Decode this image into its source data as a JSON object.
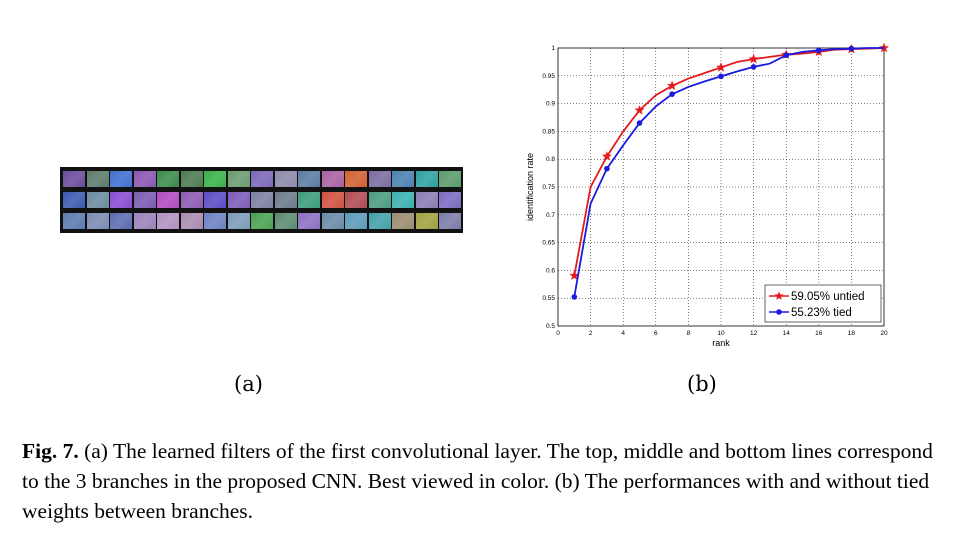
{
  "figure": {
    "sub_a_label": "(a)",
    "sub_b_label": "(b)",
    "caption_prefix": "Fig. 7.",
    "caption_text": "(a) The learned filters of the first convolutional layer. The top, middle and bottom lines correspond to the 3 branches in the proposed CNN. Best viewed in color. (b) The performances with and without tied weights between branches."
  },
  "filters": {
    "rows": [
      [
        "#6a4a9a",
        "#5a7a6a",
        "#3f6fd0",
        "#8a55b0",
        "#3a8a4a",
        "#4a7a50",
        "#38b048",
        "#6a9a70",
        "#7a66b8",
        "#8a8aaa",
        "#5a7aa0",
        "#a860a0",
        "#d06030",
        "#7a6aa0",
        "#4a80b0",
        "#2f9f9f",
        "#5a9a6a"
      ],
      [
        "#3a5ab0",
        "#6a8aa0",
        "#8a4ad0",
        "#7a5ab0",
        "#b04ac0",
        "#8a5ab0",
        "#5a4ac0",
        "#7a5ab8",
        "#7a80a0",
        "#6a7a8a",
        "#3a9a7a",
        "#d05040",
        "#b04a50",
        "#4a9a80",
        "#3ab0b0",
        "#8a7ab0",
        "#7a6ac0"
      ],
      [
        "#5a7ab0",
        "#7a8ab0",
        "#5a6ab0",
        "#9a80b8",
        "#b090c0",
        "#a88ab0",
        "#6a80c0",
        "#7a9ab8",
        "#4aa050",
        "#5a8a70",
        "#8a70c0",
        "#6a8aa8",
        "#5a9ab8",
        "#40a0a8",
        "#9a8a70",
        "#a0a040",
        "#7a7aa8"
      ]
    ]
  },
  "chart_data": {
    "type": "line",
    "xlabel": "rank",
    "ylabel": "identification rate",
    "xlim": [
      0,
      20
    ],
    "ylim": [
      0.5,
      1
    ],
    "xticks": [
      "0",
      "2",
      "4",
      "6",
      "8",
      "10",
      "12",
      "14",
      "16",
      "18",
      "20"
    ],
    "yticks": [
      "0.5",
      "0.55",
      "0.6",
      "0.65",
      "0.7",
      "0.75",
      "0.8",
      "0.85",
      "0.9",
      "0.95",
      "1"
    ],
    "grid": true,
    "legend_position": "bottom-right",
    "series": [
      {
        "name": "59.05% untied",
        "color": "#e41a1c",
        "marker": "star",
        "x": [
          1,
          2,
          3,
          4,
          5,
          6,
          7,
          8,
          9,
          10,
          11,
          12,
          13,
          14,
          15,
          16,
          17,
          18,
          19,
          20
        ],
        "y": [
          0.5905,
          0.75,
          0.805,
          0.85,
          0.888,
          0.915,
          0.932,
          0.945,
          0.955,
          0.965,
          0.975,
          0.98,
          0.984,
          0.988,
          0.99,
          0.993,
          0.997,
          0.998,
          0.999,
          1.0
        ],
        "marker_x": [
          1,
          3,
          5,
          7,
          10,
          12,
          14,
          16,
          18,
          20
        ],
        "marker_y": [
          0.5905,
          0.805,
          0.888,
          0.932,
          0.965,
          0.98,
          0.988,
          0.993,
          0.998,
          1.0
        ]
      },
      {
        "name": "55.23% tied",
        "color": "#1a1ae0",
        "marker": "circle",
        "x": [
          1,
          2,
          3,
          4,
          5,
          6,
          7,
          8,
          9,
          10,
          11,
          12,
          13,
          14,
          15,
          16,
          17,
          18,
          19,
          20
        ],
        "y": [
          0.5523,
          0.72,
          0.783,
          0.825,
          0.865,
          0.895,
          0.917,
          0.93,
          0.94,
          0.949,
          0.958,
          0.966,
          0.972,
          0.987,
          0.993,
          0.996,
          0.998,
          0.999,
          1.0,
          1.0
        ],
        "marker_x": [
          1,
          3,
          5,
          7,
          10,
          12,
          14,
          16,
          18
        ],
        "marker_y": [
          0.5523,
          0.783,
          0.865,
          0.917,
          0.949,
          0.966,
          0.987,
          0.996,
          0.999
        ]
      }
    ]
  }
}
